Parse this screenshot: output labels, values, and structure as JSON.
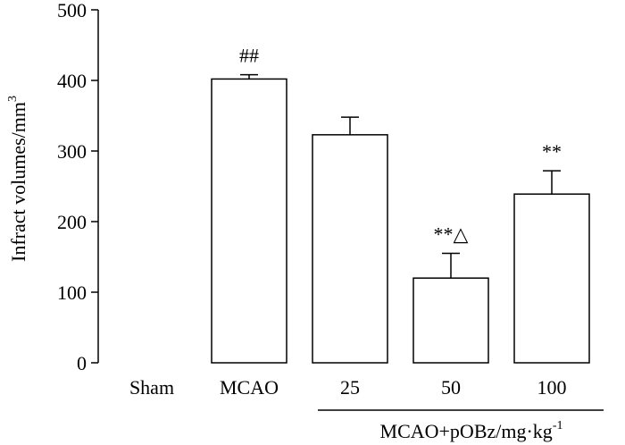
{
  "chart_data": {
    "type": "bar",
    "title": "",
    "xlabel": "",
    "ylabel": "Infract volumes/mm",
    "ylabel_superscript": "3",
    "ylim": [
      0,
      500
    ],
    "yticks": [
      0,
      100,
      200,
      300,
      400,
      500
    ],
    "ytick_labels": [
      "0",
      "100",
      "200",
      "300",
      "400",
      "500"
    ],
    "categories": [
      "Sham",
      "MCAO",
      "25",
      "50",
      "100"
    ],
    "values": [
      0,
      402,
      323,
      120,
      239
    ],
    "errors": [
      0,
      6,
      25,
      35,
      33
    ],
    "annotations": [
      "",
      "##",
      "",
      "**△",
      "**"
    ],
    "group_label": "MCAO+pOBz/mg·kg",
    "group_label_superscript": "-1",
    "bar_fill": "#ffffff",
    "bar_stroke": "#000000"
  }
}
